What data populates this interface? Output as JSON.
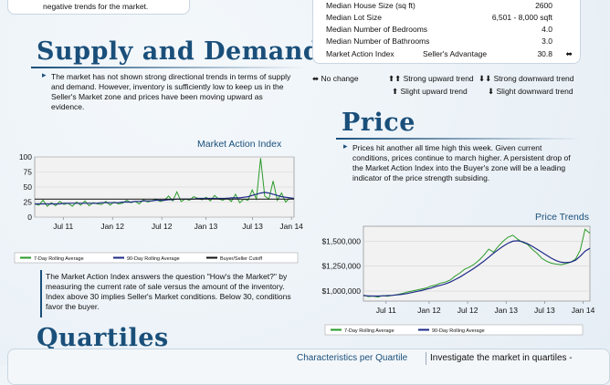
{
  "intro": {
    "text_tail": "negative trends for the market."
  },
  "supply": {
    "heading": "Supply and Demand",
    "text": "The market has not shown strong directional trends in terms of supply and demand.  However, inventory is sufficiently low to keep us in the Seller's Market zone and prices have been moving upward as evidence."
  },
  "stats": [
    {
      "label": "Median House Size (sq ft)",
      "value": "2600"
    },
    {
      "label": "Median Lot Size",
      "value": "6,501 - 8,000 sqft"
    },
    {
      "label": "Median Number of Bedrooms",
      "value": "4.0"
    },
    {
      "label": "Median Number of Bathrooms",
      "value": "3.0"
    },
    {
      "label": "Market Action Index",
      "value": "30.8",
      "mid": "Seller's Advantage"
    }
  ],
  "trend_legend": {
    "no_change": "No change",
    "strong_up": "Strong upward trend",
    "strong_down": "Strong downward trend",
    "slight_up": "Slight upward trend",
    "slight_down": "Slight downward trend"
  },
  "price": {
    "heading": "Price",
    "text": "Prices hit another all time high this week. Given current conditions, prices continue to march higher. A persistent drop of the Market Action Index into the Buyer's zone will be a leading indicator of the price strength subsiding."
  },
  "mai_explain": "The Market Action Index answers the question \"How's the Market?\" by measuring the current rate of sale versus the amount of the inventory.  Index above 30 implies Seller's Market conditions. Below 30, conditions favor the buyer.",
  "quartiles": {
    "heading": "Quartiles",
    "col_title": "Characteristics per Quartile",
    "col_text": "Investigate the market in quartiles -"
  },
  "chart_data": [
    {
      "type": "line",
      "title": "Market Action Index",
      "x_ticks": [
        "Jul 11",
        "Jan 12",
        "Jul 12",
        "Jan 13",
        "Jul 13",
        "Jan 14"
      ],
      "ylim": [
        0,
        100
      ],
      "y_ticks": [
        0,
        25,
        50,
        75,
        100
      ],
      "grid": true,
      "legend": "bottom",
      "series": [
        {
          "name": "7-Day Rolling Average",
          "color": "#2a9a2a",
          "values": [
            22,
            20,
            28,
            18,
            24,
            19,
            26,
            21,
            23,
            18,
            25,
            20,
            27,
            19,
            24,
            22,
            21,
            26,
            20,
            25,
            22,
            23,
            28,
            24,
            26,
            22,
            29,
            25,
            27,
            30,
            26,
            28,
            35,
            27,
            42,
            26,
            30,
            28,
            34,
            31,
            29,
            33,
            27,
            36,
            30,
            28,
            32,
            26,
            38,
            24,
            30,
            28,
            45,
            30,
            98,
            35,
            30,
            60,
            28,
            40,
            25,
            32,
            30
          ]
        },
        {
          "name": "90-Day Rolling Average",
          "color": "#1e2a88",
          "values": [
            22,
            22,
            22,
            22,
            22,
            22,
            22,
            23,
            23,
            23,
            23,
            23,
            23,
            23,
            23,
            23,
            24,
            24,
            24,
            24,
            24,
            25,
            25,
            25,
            26,
            26,
            27,
            27,
            27,
            28,
            28,
            28,
            29,
            29,
            30,
            30,
            30,
            30,
            30,
            31,
            31,
            31,
            31,
            31,
            31,
            31,
            31,
            32,
            32,
            32,
            33,
            34,
            36,
            38,
            40,
            41,
            40,
            38,
            36,
            34,
            33,
            32,
            31
          ]
        },
        {
          "name": "Buyer/Seller Cutoff",
          "color": "#111111",
          "values": [
            30,
            30
          ]
        }
      ]
    },
    {
      "type": "line",
      "title": "Price Trends",
      "x_ticks": [
        "Jul 11",
        "Jan 12",
        "Jul 12",
        "Jan 13",
        "Jul 13",
        "Jan 14"
      ],
      "y_ticks": [
        "$1,000,000",
        "$1,250,000",
        "$1,500,000"
      ],
      "ylim": [
        900000,
        1650000
      ],
      "grid": true,
      "legend": "bottom",
      "series": [
        {
          "name": "7-Day Rolling Average",
          "color": "#2a9a2a",
          "values": [
            960000,
            945000,
            950000,
            940000,
            955000,
            948000,
            958000,
            965000,
            975000,
            990000,
            1000000,
            1010000,
            1020000,
            1030000,
            1050000,
            1060000,
            1080000,
            1090000,
            1110000,
            1150000,
            1180000,
            1220000,
            1240000,
            1270000,
            1310000,
            1360000,
            1420000,
            1390000,
            1450000,
            1500000,
            1540000,
            1560000,
            1520000,
            1490000,
            1470000,
            1420000,
            1380000,
            1330000,
            1300000,
            1280000,
            1270000,
            1265000,
            1275000,
            1290000,
            1320000,
            1410000,
            1620000,
            1580000
          ]
        },
        {
          "name": "90-Day Rolling Average",
          "color": "#1e2a88",
          "values": [
            955000,
            952000,
            950000,
            950000,
            952000,
            955000,
            958000,
            962000,
            968000,
            975000,
            985000,
            995000,
            1005000,
            1018000,
            1030000,
            1045000,
            1058000,
            1072000,
            1090000,
            1115000,
            1140000,
            1170000,
            1200000,
            1230000,
            1265000,
            1300000,
            1340000,
            1380000,
            1415000,
            1450000,
            1480000,
            1500000,
            1505000,
            1495000,
            1475000,
            1450000,
            1420000,
            1390000,
            1360000,
            1330000,
            1305000,
            1290000,
            1285000,
            1290000,
            1310000,
            1350000,
            1400000,
            1430000
          ]
        }
      ]
    }
  ]
}
